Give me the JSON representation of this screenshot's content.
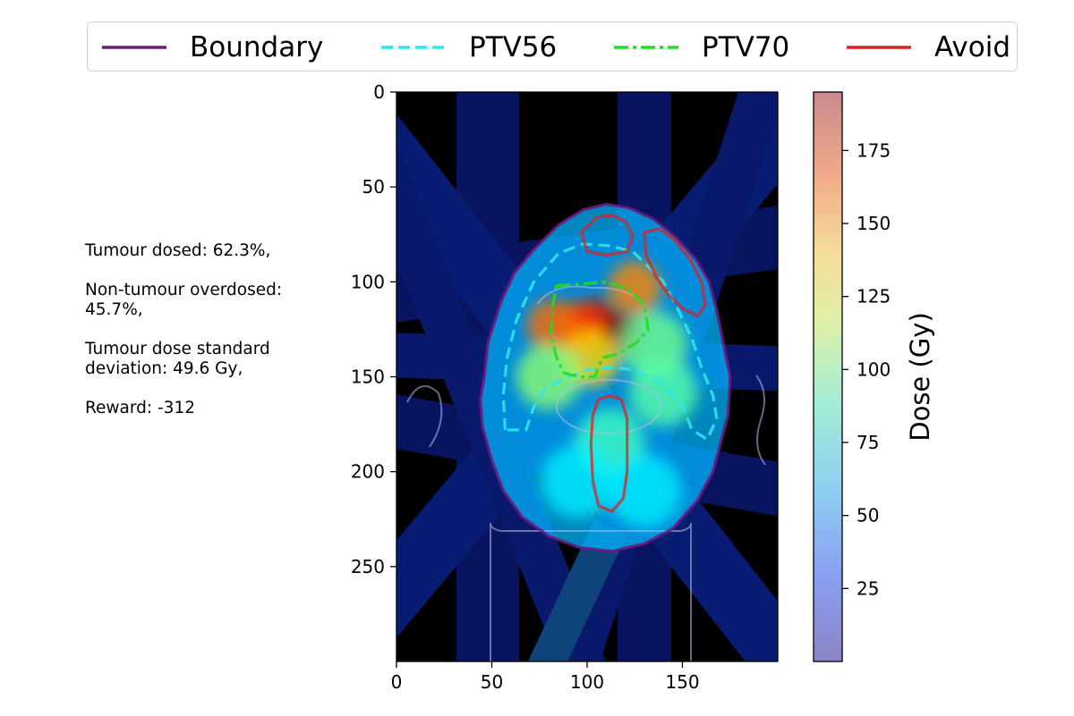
{
  "legend": {
    "items": [
      {
        "label": "Boundary",
        "color": "#6a1b7c",
        "style": "solid"
      },
      {
        "label": "PTV56",
        "color": "#2ee6f0",
        "style": "dashed"
      },
      {
        "label": "PTV70",
        "color": "#22dd22",
        "style": "dashdot"
      },
      {
        "label": "Avoid",
        "color": "#e02020",
        "style": "solid"
      }
    ]
  },
  "stats": {
    "tumour_dosed": "Tumour dosed: 62.3%,",
    "non_tumour": "Non-tumour overdosed:  45.7%,",
    "std": "Tumour dose standard deviation:  49.6 Gy,",
    "reward": "Reward:  -312"
  },
  "chart_data": {
    "type": "heatmap",
    "title": "",
    "xlabel": "",
    "ylabel": "",
    "xlim": [
      0,
      200
    ],
    "ylim": [
      300,
      0
    ],
    "xticks": [
      0,
      50,
      100,
      150
    ],
    "yticks": [
      0,
      50,
      100,
      150,
      200,
      250
    ],
    "colorbar": {
      "label": "Dose (Gy)",
      "ticks": [
        25,
        50,
        75,
        100,
        125,
        150,
        175
      ],
      "range": [
        0,
        195
      ],
      "colormap": "jet"
    },
    "contours": [
      {
        "name": "Boundary",
        "points": [
          [
            46,
            150
          ],
          [
            48,
            132
          ],
          [
            55,
            110
          ],
          [
            62,
            95
          ],
          [
            72,
            83
          ],
          [
            85,
            70
          ],
          [
            98,
            62
          ],
          [
            110,
            59
          ],
          [
            122,
            61
          ],
          [
            135,
            67
          ],
          [
            146,
            76
          ],
          [
            157,
            88
          ],
          [
            164,
            100
          ],
          [
            168,
            115
          ],
          [
            172,
            135
          ],
          [
            175,
            150
          ],
          [
            174,
            170
          ],
          [
            170,
            185
          ],
          [
            166,
            200
          ],
          [
            158,
            215
          ],
          [
            145,
            230
          ],
          [
            130,
            238
          ],
          [
            113,
            242
          ],
          [
            96,
            240
          ],
          [
            80,
            234
          ],
          [
            66,
            224
          ],
          [
            56,
            210
          ],
          [
            50,
            194
          ],
          [
            45,
            176
          ],
          [
            44,
            162
          ]
        ]
      },
      {
        "name": "PTV56",
        "points": [
          [
            57,
            178
          ],
          [
            56,
            160
          ],
          [
            58,
            140
          ],
          [
            63,
            120
          ],
          [
            72,
            100
          ],
          [
            85,
            85
          ],
          [
            98,
            80
          ],
          [
            112,
            81
          ],
          [
            124,
            84
          ],
          [
            132,
            92
          ],
          [
            140,
            100
          ],
          [
            148,
            115
          ],
          [
            155,
            130
          ],
          [
            160,
            145
          ],
          [
            166,
            160
          ],
          [
            168,
            172
          ],
          [
            163,
            183
          ],
          [
            155,
            178
          ],
          [
            150,
            165
          ],
          [
            138,
            152
          ],
          [
            122,
            146
          ],
          [
            112,
            145
          ],
          [
            102,
            146
          ],
          [
            90,
            150
          ],
          [
            78,
            156
          ],
          [
            72,
            166
          ],
          [
            68,
            178
          ]
        ]
      },
      {
        "name": "PTV70",
        "points": [
          [
            84,
            102
          ],
          [
            98,
            101
          ],
          [
            110,
            100
          ],
          [
            122,
            104
          ],
          [
            130,
            112
          ],
          [
            132,
            125
          ],
          [
            126,
            132
          ],
          [
            116,
            138
          ],
          [
            108,
            140
          ],
          [
            104,
            150
          ],
          [
            96,
            150
          ],
          [
            88,
            148
          ],
          [
            84,
            140
          ],
          [
            81,
            128
          ],
          [
            82,
            112
          ]
        ]
      },
      {
        "name": "Avoid",
        "points": [
          [
            97,
            74
          ],
          [
            105,
            66
          ],
          [
            113,
            65
          ],
          [
            120,
            68
          ],
          [
            124,
            76
          ],
          [
            121,
            84
          ],
          [
            110,
            86
          ],
          [
            100,
            84
          ]
        ]
      },
      {
        "name": "Avoid",
        "points": [
          [
            130,
            74
          ],
          [
            138,
            72
          ],
          [
            146,
            78
          ],
          [
            154,
            88
          ],
          [
            160,
            100
          ],
          [
            162,
            112
          ],
          [
            158,
            118
          ],
          [
            150,
            114
          ],
          [
            142,
            106
          ],
          [
            136,
            97
          ],
          [
            131,
            86
          ]
        ]
      },
      {
        "name": "Avoid",
        "points": [
          [
            103,
            170
          ],
          [
            106,
            162
          ],
          [
            112,
            160
          ],
          [
            118,
            162
          ],
          [
            121,
            172
          ],
          [
            121,
            200
          ],
          [
            119,
            214
          ],
          [
            113,
            221
          ],
          [
            106,
            218
          ],
          [
            103,
            205
          ],
          [
            102,
            185
          ]
        ]
      }
    ],
    "hotspots": [
      {
        "x": 105,
        "y": 120,
        "dose": 185
      },
      {
        "x": 118,
        "y": 127,
        "dose": 195
      },
      {
        "x": 97,
        "y": 123,
        "dose": 160
      },
      {
        "x": 82,
        "y": 123,
        "dose": 150
      },
      {
        "x": 125,
        "y": 103,
        "dose": 145
      },
      {
        "x": 102,
        "y": 140,
        "dose": 130
      },
      {
        "x": 135,
        "y": 133,
        "dose": 95
      },
      {
        "x": 80,
        "y": 150,
        "dose": 100
      },
      {
        "x": 140,
        "y": 158,
        "dose": 90
      },
      {
        "x": 112,
        "y": 185,
        "dose": 85
      },
      {
        "x": 95,
        "y": 205,
        "dose": 70
      },
      {
        "x": 130,
        "y": 210,
        "dose": 70
      }
    ]
  }
}
